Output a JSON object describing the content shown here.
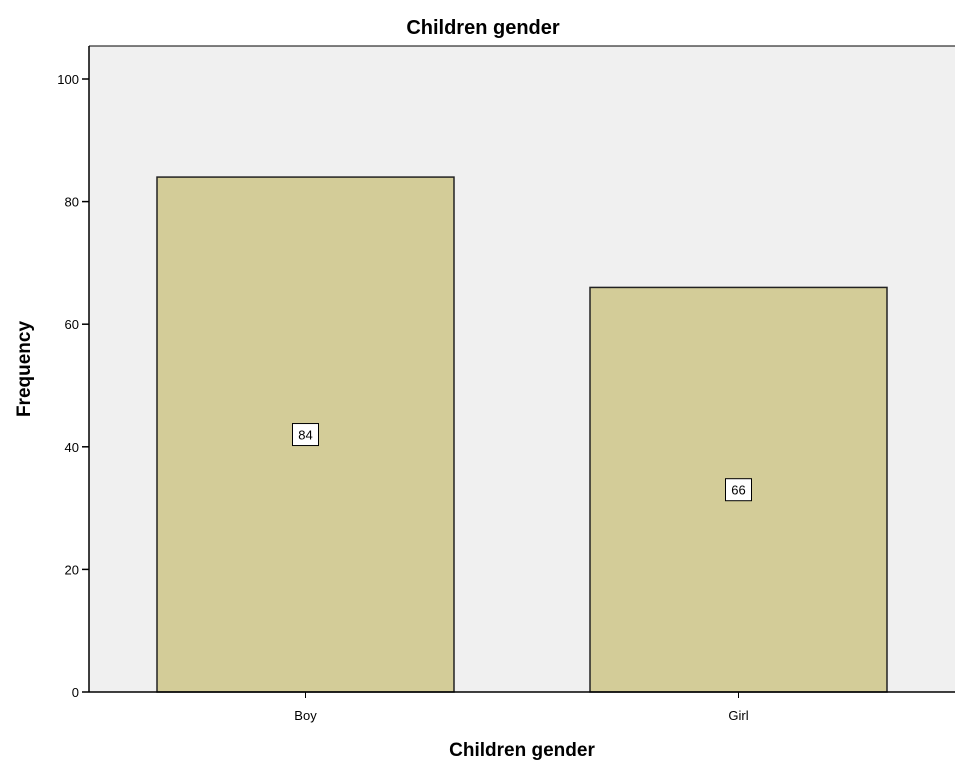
{
  "chart_data": {
    "type": "bar",
    "title": "Children gender",
    "xlabel": "Children gender",
    "ylabel": "Frequency",
    "categories": [
      "Boy",
      "Girl"
    ],
    "values": [
      84,
      66
    ],
    "data_labels": [
      "84",
      "66"
    ],
    "ylim": [
      0,
      105
    ],
    "yticks": [
      0,
      20,
      40,
      60,
      80,
      100
    ],
    "ytick_labels": [
      "0",
      "20",
      "40",
      "60",
      "80",
      "100"
    ],
    "grid": false,
    "legend": "none",
    "colors": {
      "bar_fill": "#d3cc98",
      "bar_stroke": "#222222",
      "plot_background": "#f0f0f0",
      "page_background": "#ffffff"
    }
  }
}
